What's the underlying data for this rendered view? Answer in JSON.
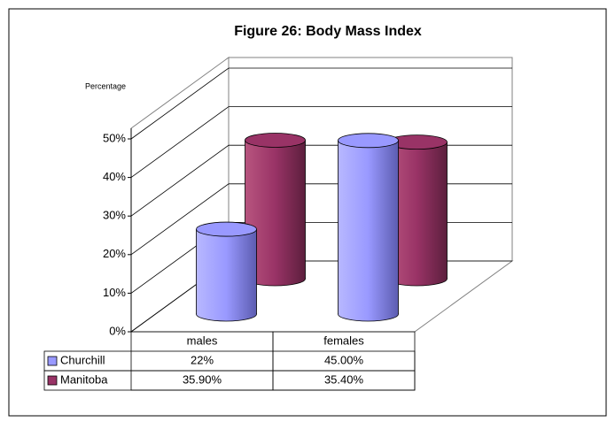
{
  "chart_data": {
    "type": "cylinder",
    "title": "Figure 26: Body Mass Index",
    "y_label": "Percentage",
    "categories": [
      "males",
      "females"
    ],
    "series": [
      {
        "name": "Churchill",
        "color": "#9999ff",
        "values": [
          22,
          45
        ],
        "value_labels": [
          "22%",
          "45.00%"
        ]
      },
      {
        "name": "Manitoba",
        "color": "#993366",
        "values": [
          35.9,
          35.4
        ],
        "value_labels": [
          "35.90%",
          "35.40%"
        ]
      }
    ],
    "ylim": [
      0,
      50
    ],
    "yticks": [
      {
        "value": 0,
        "label": "0%"
      },
      {
        "value": 10,
        "label": "10%"
      },
      {
        "value": 20,
        "label": "20%"
      },
      {
        "value": 30,
        "label": "30%"
      },
      {
        "value": 40,
        "label": "40%"
      },
      {
        "value": 50,
        "label": "50%"
      }
    ],
    "grid": true
  }
}
